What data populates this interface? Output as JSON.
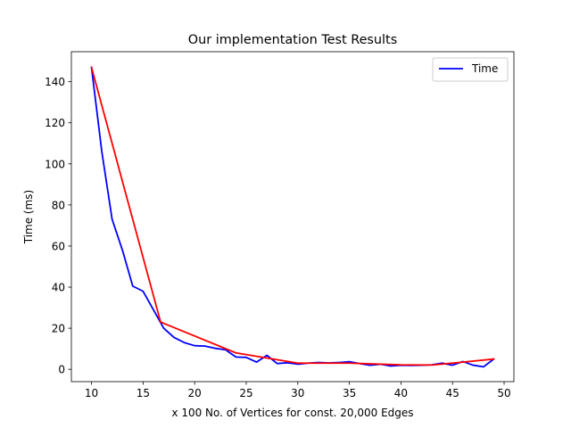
{
  "chart_data": {
    "type": "line",
    "title": "Our implementation Test Results",
    "xlabel": "x 100 No. of Vertices for const. 20,000 Edges",
    "ylabel": "Time (ms)",
    "xlim": [
      8.05,
      50.95
    ],
    "ylim": [
      -6.0,
      154.6
    ],
    "xticks": [
      10,
      15,
      20,
      25,
      30,
      35,
      40,
      45,
      50
    ],
    "yticks": [
      0,
      20,
      40,
      60,
      80,
      100,
      120,
      140
    ],
    "grid": false,
    "legend_position": "upper-right",
    "series": [
      {
        "name": "Time",
        "color": "#0000ff",
        "in_legend": true,
        "x": [
          10,
          11,
          12,
          13,
          14,
          15,
          16,
          17,
          18,
          19,
          20,
          21,
          22,
          23,
          24,
          25,
          26,
          27,
          28,
          29,
          30,
          31,
          32,
          33,
          34,
          35,
          36,
          37,
          38,
          39,
          40,
          41,
          42,
          43,
          44,
          45,
          46,
          47,
          48,
          49
        ],
        "y": [
          147,
          106,
          73,
          58,
          40.5,
          38,
          29,
          20,
          15.5,
          13,
          11.5,
          11.3,
          10.2,
          9.5,
          6,
          5.8,
          3.5,
          6.8,
          2.8,
          3.2,
          2.5,
          3,
          3.3,
          3.1,
          3.3,
          3.7,
          2.8,
          2.0,
          2.5,
          1.6,
          2.0,
          1.9,
          2.0,
          2.2,
          3.0,
          2.0,
          3.8,
          2.0,
          1.2,
          5.0
        ]
      },
      {
        "name": "",
        "color": "#ff0000",
        "in_legend": false,
        "x": [
          10,
          16.7,
          24,
          30,
          35,
          40,
          43,
          46,
          49
        ],
        "y": [
          147,
          23,
          8,
          3,
          3,
          2.2,
          2.1,
          3.5,
          5.0
        ]
      }
    ]
  }
}
